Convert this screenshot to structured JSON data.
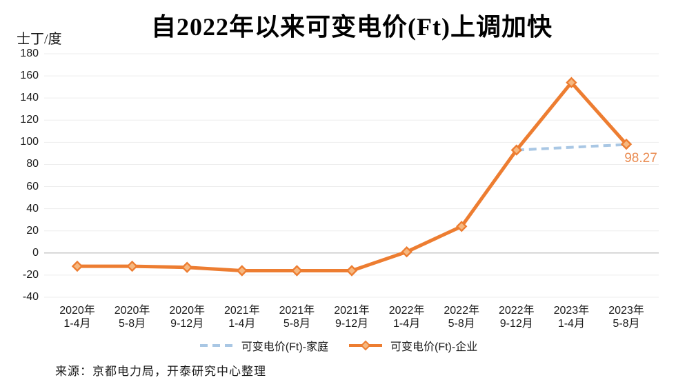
{
  "title": "自2022年以来可变电价(Ft)上调加快",
  "y_unit_label": "士丁/度",
  "source_note": "来源：京都电力局，开泰研究中心整理",
  "legend": {
    "household_label": "可变电价(Ft)-家庭",
    "enterprise_label": "可变电价(Ft)-企业"
  },
  "colors": {
    "enterprise_line": "#ED7D31",
    "enterprise_marker_fill": "#F6B880",
    "household_line": "#A9C7E4",
    "gridline": "#EDEDED",
    "zero_gridline": "#C6C6C6",
    "annotation_text": "#EA8C52",
    "axis_text": "#1A1A1A"
  },
  "chart_data": {
    "type": "line",
    "title": "自2022年以来可变电价(Ft)上调加快",
    "ylabel": "士丁/度",
    "xlabel": "",
    "ylim": [
      -40,
      180
    ],
    "ytick_step": 20,
    "grid": true,
    "legend_position": "bottom",
    "categories": [
      "2020年 1-4月",
      "2020年 5-8月",
      "2020年 9-12月",
      "2021年 1-4月",
      "2021年 5-8月",
      "2021年 9-12月",
      "2022年 1-4月",
      "2022年 5-8月",
      "2022年 9-12月",
      "2023年 1-4月",
      "2023年 5-8月"
    ],
    "x_tick_line1": [
      "2020年",
      "2020年",
      "2020年",
      "2021年",
      "2021年",
      "2021年",
      "2022年",
      "2022年",
      "2022年",
      "2023年",
      "2023年"
    ],
    "x_tick_line2": [
      "1-4月",
      "5-8月",
      "9-12月",
      "1-4月",
      "5-8月",
      "9-12月",
      "1-4月",
      "5-8月",
      "9-12月",
      "1-4月",
      "5-8月"
    ],
    "series": [
      {
        "name": "可变电价(Ft)-家庭",
        "line_style": "dashed",
        "marker": "none",
        "color": "#A9C7E4",
        "values": [
          null,
          null,
          null,
          null,
          null,
          null,
          null,
          null,
          93,
          95.5,
          98
        ]
      },
      {
        "name": "可变电价(Ft)-企业",
        "line_style": "solid",
        "marker": "diamond",
        "color": "#ED7D31",
        "values": [
          -12,
          -12,
          -13,
          -16,
          -16,
          -16,
          1,
          24,
          93,
          154,
          98.27
        ]
      }
    ],
    "annotation": {
      "text": "98.27",
      "series": "可变电价(Ft)-企业",
      "category": "2023年 5-8月",
      "value": 98.27
    }
  }
}
